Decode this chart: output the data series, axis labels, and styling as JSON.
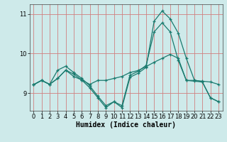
{
  "xlabel": "Humidex (Indice chaleur)",
  "background_color": "#ceeaea",
  "grid_color_v": "#d08080",
  "grid_color_h": "#d08080",
  "line_color": "#1a7a6e",
  "xlim": [
    -0.5,
    23.5
  ],
  "ylim": [
    8.55,
    11.25
  ],
  "yticks": [
    9,
    10,
    11
  ],
  "xticks": [
    0,
    1,
    2,
    3,
    4,
    5,
    6,
    7,
    8,
    9,
    10,
    11,
    12,
    13,
    14,
    15,
    16,
    17,
    18,
    19,
    20,
    21,
    22,
    23
  ],
  "line1_x": [
    0,
    1,
    2,
    3,
    4,
    5,
    6,
    7,
    8,
    9,
    10,
    11,
    12,
    13,
    14,
    15,
    16,
    17,
    18,
    19,
    20,
    21,
    22,
    23
  ],
  "line1_y": [
    9.21,
    9.32,
    9.22,
    9.37,
    9.58,
    9.48,
    9.33,
    9.22,
    9.32,
    9.32,
    9.37,
    9.42,
    9.52,
    9.57,
    9.67,
    9.78,
    9.88,
    9.98,
    9.88,
    9.32,
    9.32,
    9.3,
    9.28,
    9.22
  ],
  "line2_x": [
    0,
    1,
    2,
    3,
    4,
    5,
    6,
    7,
    8,
    9,
    10,
    11,
    12,
    13,
    14,
    15,
    16,
    17,
    18,
    19,
    20,
    21,
    22,
    23
  ],
  "line2_y": [
    9.21,
    9.32,
    9.22,
    9.58,
    9.68,
    9.52,
    9.37,
    9.18,
    8.92,
    8.68,
    8.78,
    8.68,
    9.45,
    9.55,
    9.7,
    10.55,
    10.78,
    10.55,
    9.83,
    9.32,
    9.3,
    9.28,
    8.88,
    8.78
  ],
  "line3_x": [
    0,
    1,
    2,
    3,
    4,
    5,
    6,
    7,
    8,
    9,
    10,
    11,
    12,
    13,
    14,
    15,
    16,
    17,
    18,
    19,
    20,
    21,
    22,
    23
  ],
  "line3_y": [
    9.21,
    9.32,
    9.22,
    9.37,
    9.58,
    9.42,
    9.33,
    9.13,
    8.88,
    8.63,
    8.78,
    8.63,
    9.4,
    9.5,
    9.65,
    10.82,
    11.08,
    10.88,
    10.52,
    9.88,
    9.33,
    9.28,
    8.88,
    8.78
  ],
  "fontsize_xlabel": 7,
  "fontsize_ticks": 6
}
